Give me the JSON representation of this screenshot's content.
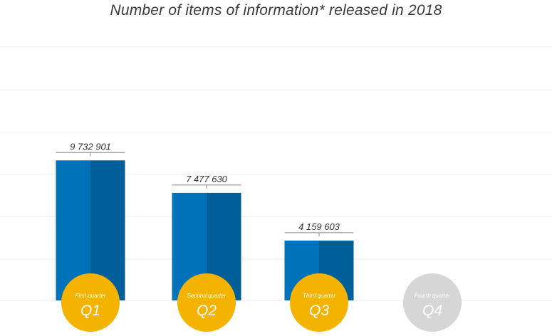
{
  "chart_data": {
    "type": "bar",
    "title": "Number of items of information* released in 2018",
    "categories": [
      "Q1",
      "Q2",
      "Q3",
      "Q4"
    ],
    "category_descriptions": [
      "First quarter",
      "Second quarter",
      "Third quarter",
      "Fourth quarter"
    ],
    "values": [
      9732901,
      7477630,
      4159603,
      null
    ],
    "value_labels": [
      "9 732 901",
      "7 477 630",
      "4 159 603",
      ""
    ],
    "ylim": [
      0,
      17000000
    ],
    "grid": true,
    "legend": "none",
    "colors": {
      "bar_left": "#0072b9",
      "bar_right": "#005f99",
      "label_active": "#f5b301",
      "label_inactive": "#d6d6d6",
      "bracket": "#888888"
    }
  }
}
